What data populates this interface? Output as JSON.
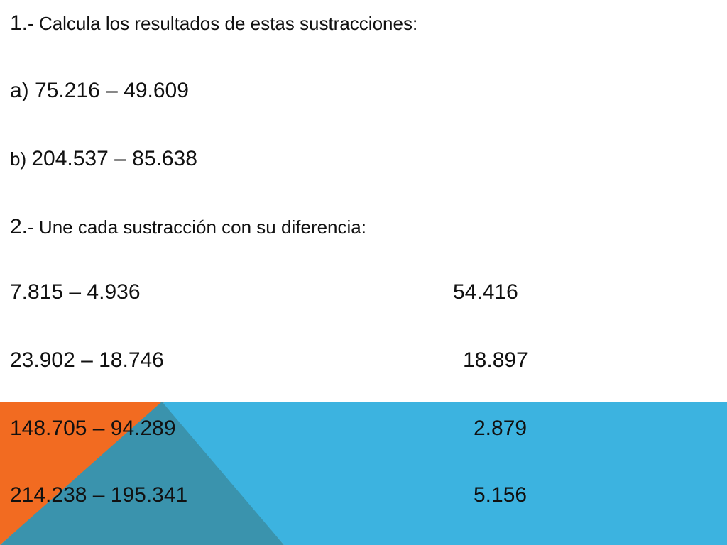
{
  "colors": {
    "background": "#ffffff",
    "text": "#111111",
    "blue": "#3cb3e0",
    "orange": "#f26b21",
    "overlap": "#3a93ad"
  },
  "q1": {
    "number": "1.",
    "title": "- Calcula los resultados de estas sustracciones:",
    "a_prefix": "a) ",
    "a_expr": "75.216 – 49.609",
    "b_prefix": "b) ",
    "b_expr": "204.537 – 85.638"
  },
  "q2": {
    "number": "2.",
    "title": "- Une cada sustracción con su diferencia:",
    "rows": [
      {
        "expr": "7.815 – 4.936",
        "result": "54.416"
      },
      {
        "expr": "23.902 – 18.746",
        "result": "18.897"
      },
      {
        "expr": "148.705 – 94.289",
        "result": "2.879"
      },
      {
        "expr": "214.238 – 195.341",
        "result": "5.156"
      }
    ]
  }
}
